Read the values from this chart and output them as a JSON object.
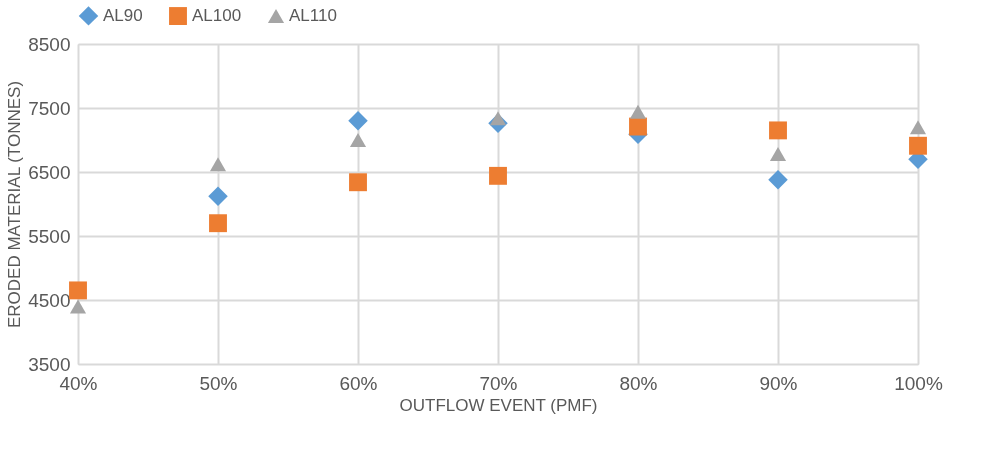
{
  "chart_data": {
    "type": "scatter",
    "xlabel": "OUTFLOW EVENT (PMF)",
    "ylabel": "ERODED MATERIAL (TONNES)",
    "x": [
      40,
      50,
      60,
      70,
      80,
      90,
      100
    ],
    "series": [
      {
        "name": "AL90",
        "color": "#5b9bd5",
        "marker": "diamond",
        "values": [
          null,
          6120,
          7300,
          7260,
          7090,
          6380,
          6700
        ]
      },
      {
        "name": "AL100",
        "color": "#ed7d31",
        "marker": "square",
        "values": [
          4650,
          5700,
          6340,
          6440,
          7210,
          7150,
          6910
        ]
      },
      {
        "name": "AL110",
        "color": "#a5a5a5",
        "marker": "triangle",
        "values": [
          4400,
          6620,
          7000,
          7340,
          7440,
          6780,
          7200
        ]
      }
    ],
    "xlim": [
      40,
      100
    ],
    "xticks": [
      {
        "value": 40,
        "label": "40%"
      },
      {
        "value": 50,
        "label": "50%"
      },
      {
        "value": 60,
        "label": "60%"
      },
      {
        "value": 70,
        "label": "70%"
      },
      {
        "value": 80,
        "label": "80%"
      },
      {
        "value": 90,
        "label": "90%"
      },
      {
        "value": 100,
        "label": "100%"
      }
    ],
    "ylim": [
      3500,
      8500
    ],
    "yticks": [
      3500,
      4500,
      5500,
      6500,
      7500,
      8500
    ],
    "grid": true,
    "legend": "top"
  }
}
